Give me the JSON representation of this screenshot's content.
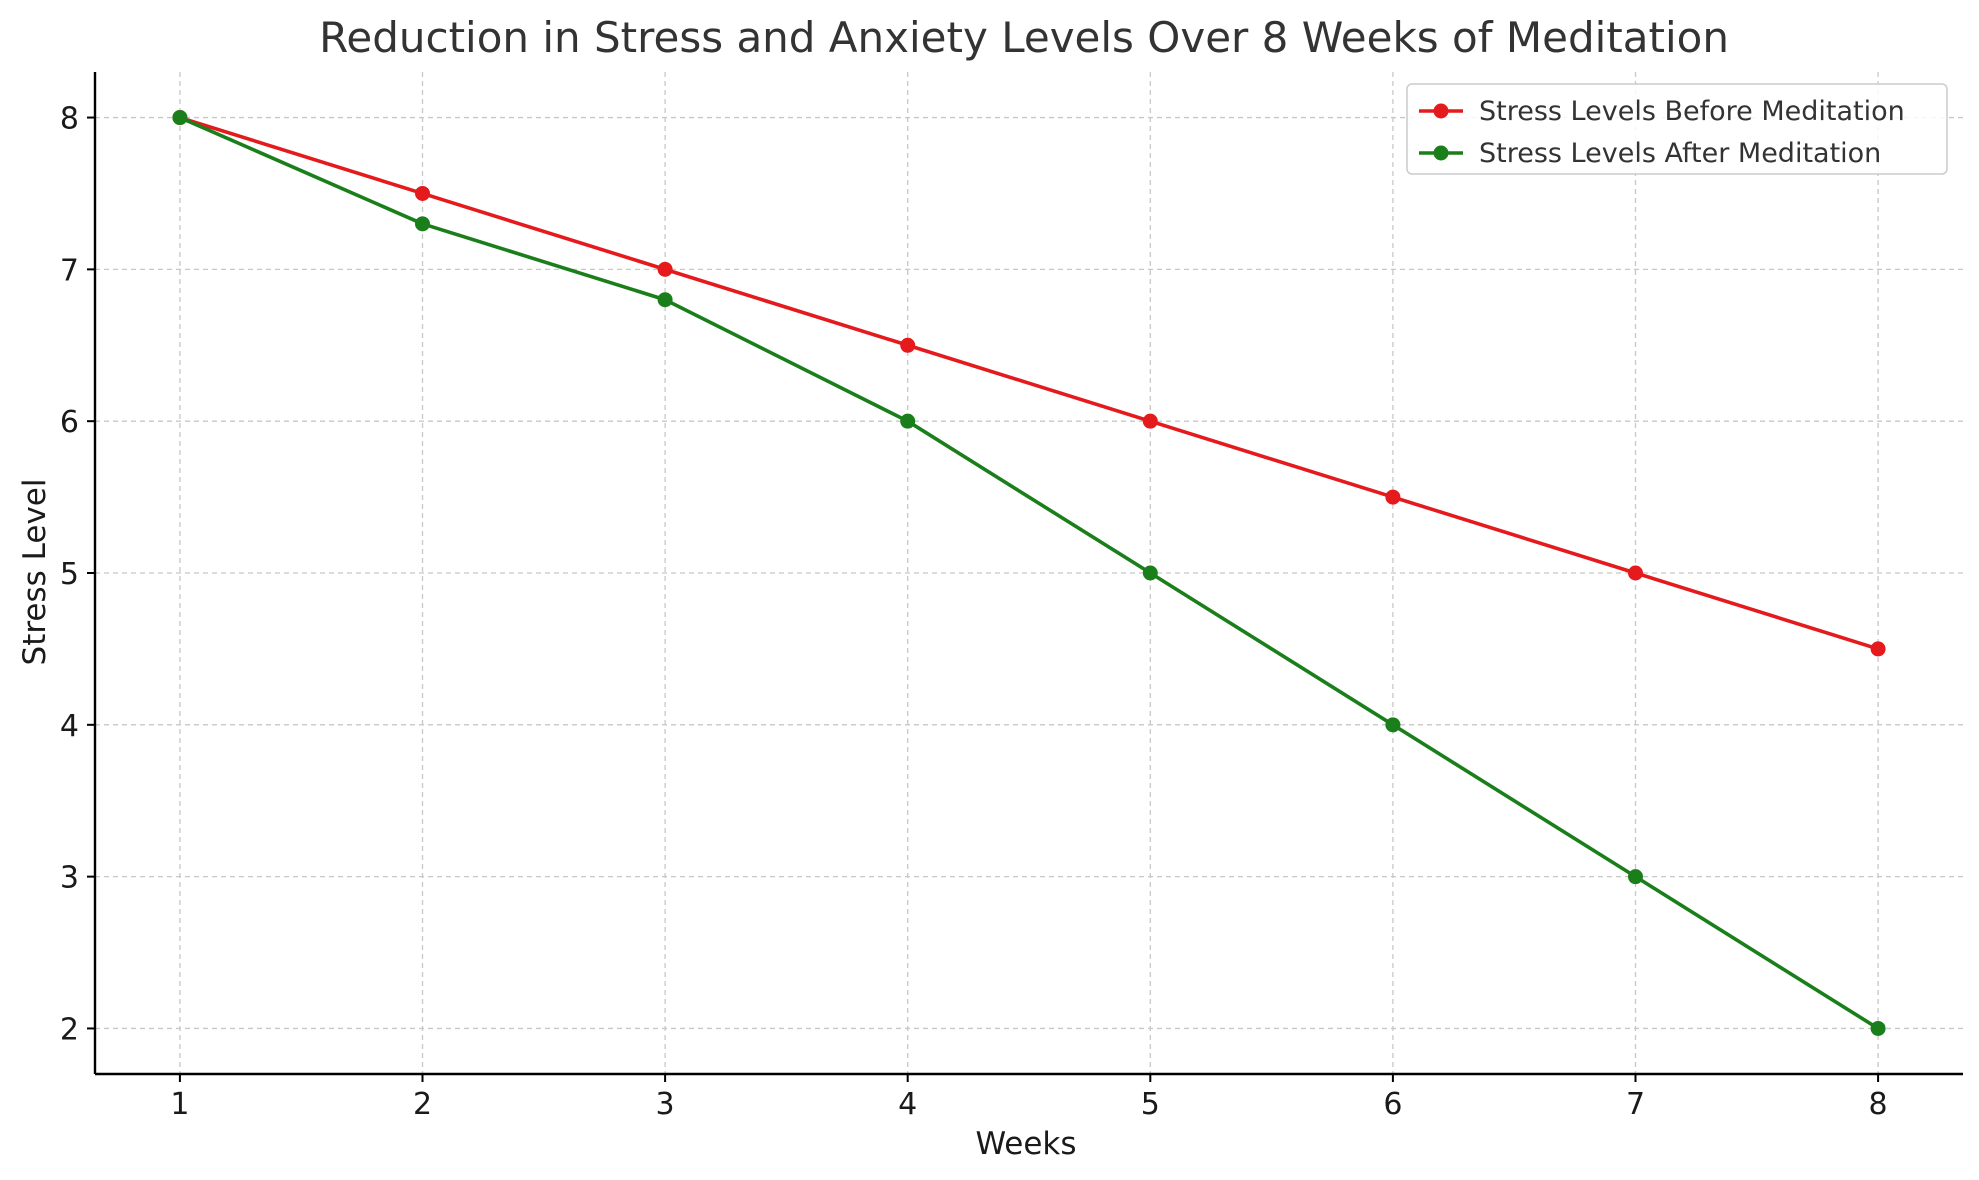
{
  "chart_data": {
    "type": "line",
    "title": "Reduction in Stress and Anxiety Levels Over 8 Weeks of Meditation",
    "xlabel": "Weeks",
    "ylabel": "Stress Level",
    "x": [
      1,
      2,
      3,
      4,
      5,
      6,
      7,
      8
    ],
    "x_tick_labels": [
      "1",
      "2",
      "3",
      "4",
      "5",
      "6",
      "7",
      "8"
    ],
    "y_ticks": [
      2,
      3,
      4,
      5,
      6,
      7,
      8
    ],
    "y_tick_labels": [
      "2",
      "3",
      "4",
      "5",
      "6",
      "7",
      "8"
    ],
    "xlim": [
      0.65,
      8.35
    ],
    "ylim": [
      1.7,
      8.3
    ],
    "grid": true,
    "legend_position": "top-right",
    "series": [
      {
        "name": "Stress Levels Before Meditation",
        "color": "#e41a1c",
        "marker": "circle",
        "values": [
          8,
          7.5,
          7,
          6.5,
          6,
          5.5,
          5,
          4.5
        ]
      },
      {
        "name": "Stress Levels After Meditation",
        "color": "#1a7f1a",
        "marker": "circle",
        "values": [
          8,
          7.3,
          6.8,
          6,
          5,
          4,
          3,
          2
        ]
      }
    ]
  }
}
